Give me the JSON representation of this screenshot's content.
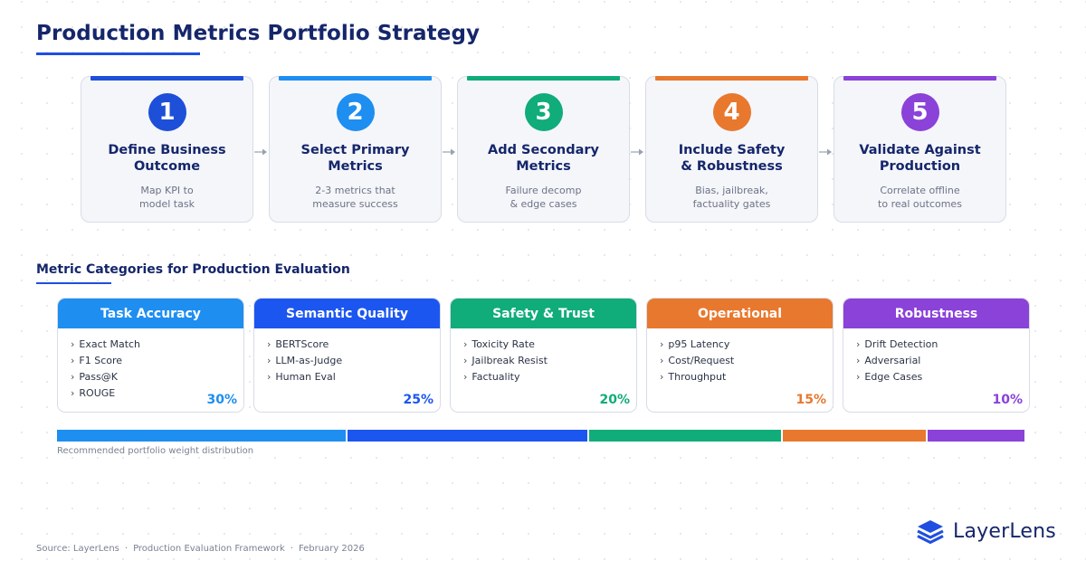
{
  "title": "Production Metrics Portfolio Strategy",
  "steps": [
    {
      "number": "1",
      "title": "Define Business\nOutcome",
      "desc": "Map KPI to\nmodel task",
      "color": "#1d4fd8"
    },
    {
      "number": "2",
      "title": "Select Primary\nMetrics",
      "desc": "2-3 metrics that\nmeasure success",
      "color": "#1e8ef0"
    },
    {
      "number": "3",
      "title": "Add Secondary\nMetrics",
      "desc": "Failure decomp\n& edge cases",
      "color": "#10ac7a"
    },
    {
      "number": "4",
      "title": "Include Safety\n& Robustness",
      "desc": "Bias, jailbreak,\nfactuality gates",
      "color": "#e8782e"
    },
    {
      "number": "5",
      "title": "Validate Against\nProduction",
      "desc": "Correlate offline\nto real outcomes",
      "color": "#8a42d8"
    }
  ],
  "section_title": "Metric Categories for Production Evaluation",
  "categories": [
    {
      "name": "Task Accuracy",
      "items": [
        "Exact Match",
        "F1 Score",
        "Pass@K",
        "ROUGE"
      ],
      "weight": "30%",
      "weight_value": 30,
      "color": "#1e8ef0"
    },
    {
      "name": "Semantic Quality",
      "items": [
        "BERTScore",
        "LLM-as-Judge",
        "Human Eval"
      ],
      "weight": "25%",
      "weight_value": 25,
      "color": "#1c56f0"
    },
    {
      "name": "Safety & Trust",
      "items": [
        "Toxicity Rate",
        "Jailbreak Resist",
        "Factuality"
      ],
      "weight": "20%",
      "weight_value": 20,
      "color": "#10ac7a"
    },
    {
      "name": "Operational",
      "items": [
        "p95 Latency",
        "Cost/Request",
        "Throughput"
      ],
      "weight": "15%",
      "weight_value": 15,
      "color": "#e8782e"
    },
    {
      "name": "Robustness",
      "items": [
        "Drift Detection",
        "Adversarial",
        "Edge Cases"
      ],
      "weight": "10%",
      "weight_value": 10,
      "color": "#8a42d8"
    }
  ],
  "weight_caption": "Recommended portfolio weight distribution",
  "footer": {
    "source": "Source: LayerLens",
    "framework": "Production Evaluation Framework",
    "date": "February 2026",
    "separator": "·"
  },
  "logo": {
    "text": "LayerLens",
    "icon": "layers-icon",
    "color": "#1f4fe0"
  },
  "icons": {
    "arrow": "arrow-right-icon"
  }
}
